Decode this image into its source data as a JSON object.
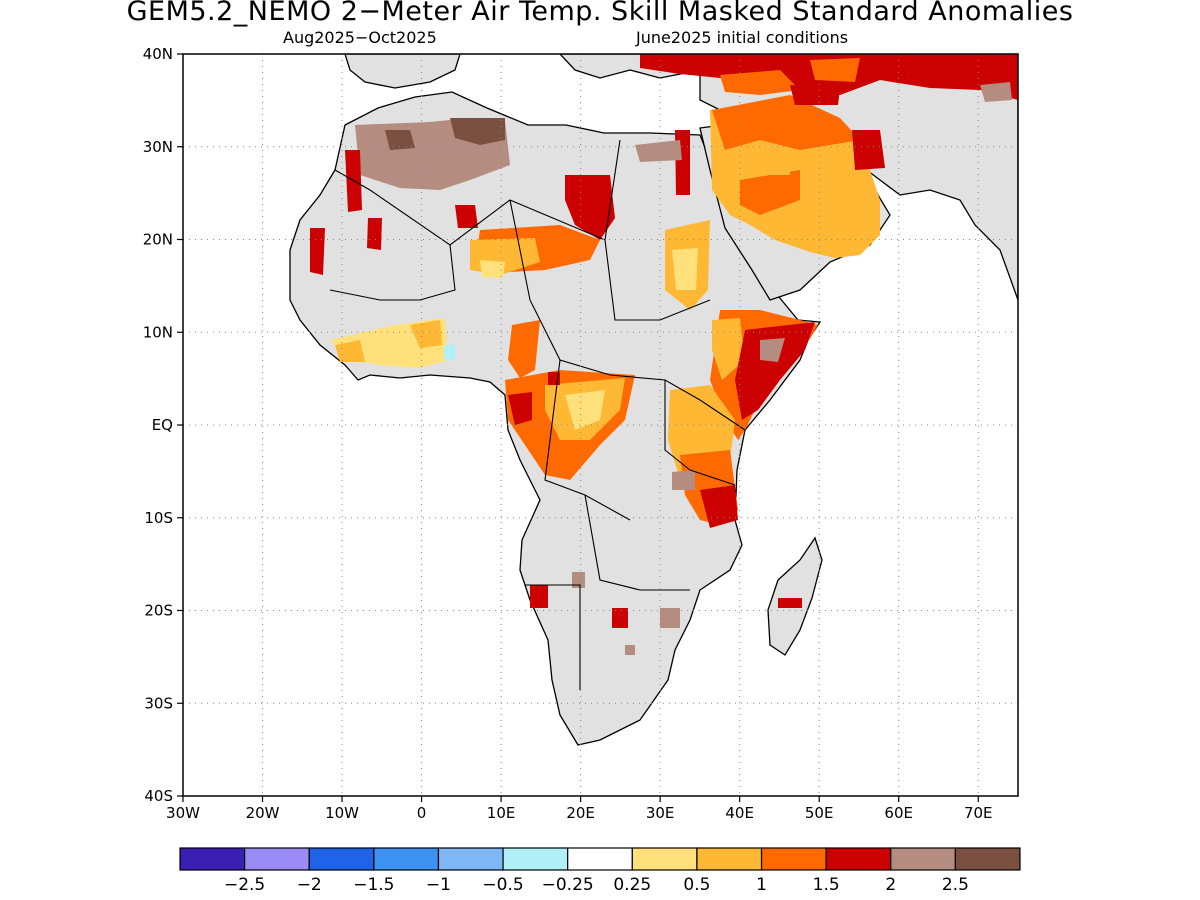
{
  "header": {
    "title": "GEM5.2_NEMO 2−Meter Air Temp. Skill Masked Standard Anomalies",
    "season": "Aug2025−Oct2025",
    "init": "June2025 initial conditions"
  },
  "map": {
    "lon_range": [
      -30,
      75
    ],
    "lat_range": [
      -40,
      40
    ],
    "lat_labels": [
      {
        "lat": 40,
        "label": "40N"
      },
      {
        "lat": 30,
        "label": "30N"
      },
      {
        "lat": 20,
        "label": "20N"
      },
      {
        "lat": 10,
        "label": "10N"
      },
      {
        "lat": 0,
        "label": "EQ"
      },
      {
        "lat": -10,
        "label": "10S"
      },
      {
        "lat": -20,
        "label": "20S"
      },
      {
        "lat": -30,
        "label": "30S"
      },
      {
        "lat": -40,
        "label": "40S"
      }
    ],
    "lon_labels": [
      {
        "lon": -30,
        "label": "30W"
      },
      {
        "lon": -20,
        "label": "20W"
      },
      {
        "lon": -10,
        "label": "10W"
      },
      {
        "lon": 0,
        "label": "0"
      },
      {
        "lon": 10,
        "label": "10E"
      },
      {
        "lon": 20,
        "label": "20E"
      },
      {
        "lon": 30,
        "label": "30E"
      },
      {
        "lon": 40,
        "label": "40E"
      },
      {
        "lon": 50,
        "label": "50E"
      },
      {
        "lon": 60,
        "label": "60E"
      },
      {
        "lon": 70,
        "label": "70E"
      }
    ],
    "colors": {
      "land_masked": "#e1e1e1",
      "near_zero": "#ffffff",
      "coast": "#000000"
    }
  },
  "colorbar": {
    "colors": [
      "#3a1fb4",
      "#9b8cf5",
      "#1e63e8",
      "#3d91f0",
      "#7fb6f5",
      "#b0eef8",
      "#ffffff",
      "#ffe07a",
      "#ffb833",
      "#ff6a00",
      "#cc0000",
      "#b48c80",
      "#7a5040"
    ],
    "labels": [
      "−2.5",
      "−2",
      "−1.5",
      "−1",
      "−0.5",
      "−0.25",
      "0.25",
      "0.5",
      "1",
      "1.5",
      "2",
      "2.5"
    ]
  }
}
